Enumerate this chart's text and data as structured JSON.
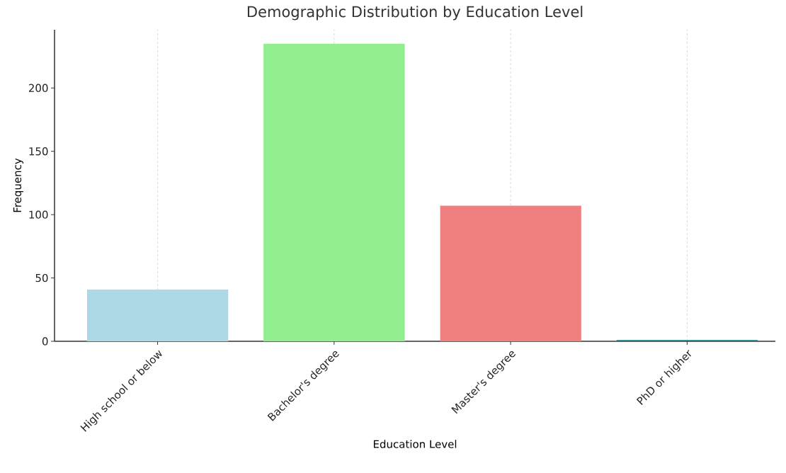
{
  "chart_data": {
    "type": "bar",
    "title": "Demographic Distribution by Education Level",
    "xlabel": "Education Level",
    "ylabel": "Frequency",
    "categories": [
      "High school or below",
      "Bachelor's degree",
      "Master's degree",
      "PhD or higher"
    ],
    "values": [
      41,
      235,
      107,
      1
    ],
    "colors": [
      "#add8e6",
      "#90ee90",
      "#f08080",
      "#008080"
    ],
    "ylim": [
      0,
      246
    ],
    "yticks": [
      0,
      50,
      100,
      150,
      200
    ],
    "grid": "x"
  }
}
